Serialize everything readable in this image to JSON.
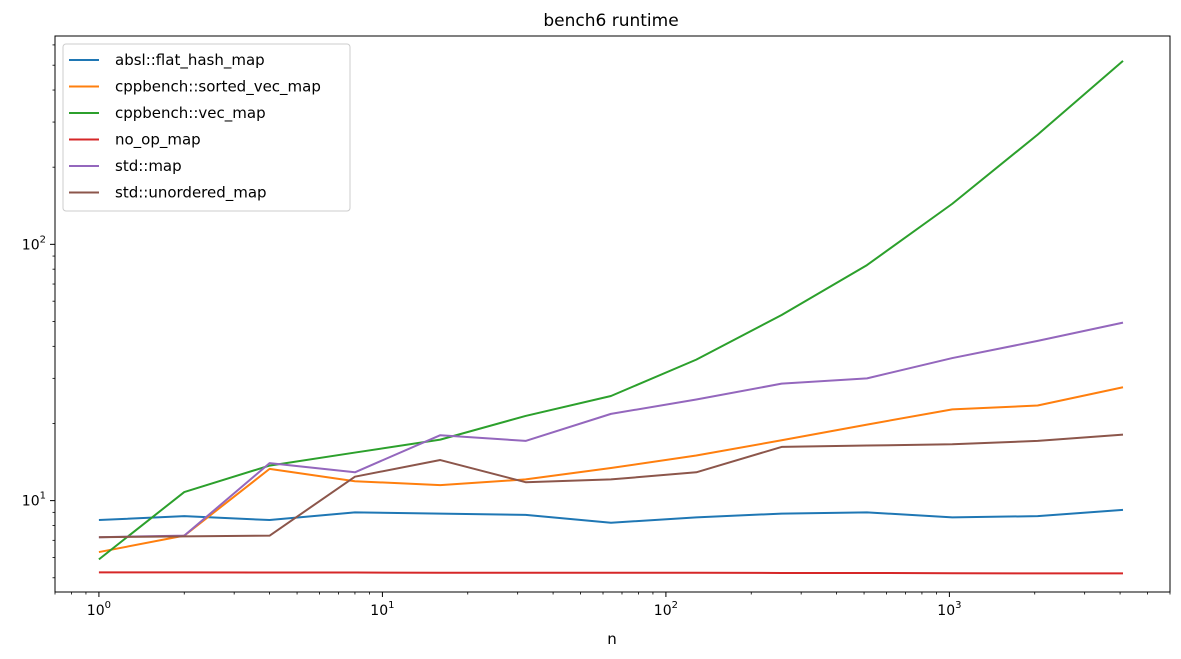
{
  "chart_data": {
    "type": "line",
    "title": "bench6 runtime",
    "xlabel": "n",
    "ylabel": "",
    "xscale": "log",
    "yscale": "log",
    "xlim": [
      0.7,
      6000
    ],
    "ylim": [
      4.4,
      650
    ],
    "grid": false,
    "legend_position": "top-left",
    "x": [
      1,
      2,
      4,
      8,
      16,
      32,
      64,
      128,
      256,
      512,
      1024,
      2048,
      4096
    ],
    "x_ticks": [
      {
        "value": 1,
        "base": "10",
        "exp": "0"
      },
      {
        "value": 10,
        "base": "10",
        "exp": "1"
      },
      {
        "value": 100,
        "base": "10",
        "exp": "2"
      },
      {
        "value": 1000,
        "base": "10",
        "exp": "3"
      }
    ],
    "y_ticks": [
      {
        "value": 10,
        "base": "10",
        "exp": "1"
      },
      {
        "value": 100,
        "base": "10",
        "exp": "2"
      }
    ],
    "series": [
      {
        "name": "absl::flat_hash_map",
        "color": "#1f77b4",
        "values": [
          8.4,
          8.7,
          8.4,
          9.0,
          8.9,
          8.8,
          8.2,
          8.6,
          8.9,
          9.0,
          8.6,
          8.7,
          9.2
        ]
      },
      {
        "name": "cppbench::sorted_vec_map",
        "color": "#ff7f0e",
        "values": [
          6.3,
          7.3,
          13.3,
          11.9,
          11.5,
          12.1,
          13.4,
          15.0,
          17.2,
          19.8,
          22.7,
          23.5,
          27.7
        ]
      },
      {
        "name": "cppbench::vec_map",
        "color": "#2ca02c",
        "values": [
          5.9,
          10.8,
          13.7,
          15.4,
          17.3,
          21.4,
          25.6,
          35.5,
          53.0,
          83.0,
          144.0,
          268.0,
          520.0
        ]
      },
      {
        "name": "no_op_map",
        "color": "#d62728",
        "values": [
          5.25,
          5.25,
          5.24,
          5.24,
          5.23,
          5.23,
          5.23,
          5.23,
          5.22,
          5.22,
          5.21,
          5.2,
          5.2
        ]
      },
      {
        "name": "std::map",
        "color": "#9467bd",
        "values": [
          7.2,
          7.3,
          14.0,
          12.9,
          18.0,
          17.1,
          21.8,
          24.8,
          28.6,
          30.0,
          36.0,
          42.0,
          49.5
        ]
      },
      {
        "name": "std::unordered_map",
        "color": "#8c564b",
        "values": [
          7.2,
          7.25,
          7.3,
          12.4,
          14.4,
          11.8,
          12.1,
          12.9,
          16.2,
          16.4,
          16.6,
          17.1,
          18.1
        ]
      }
    ]
  }
}
